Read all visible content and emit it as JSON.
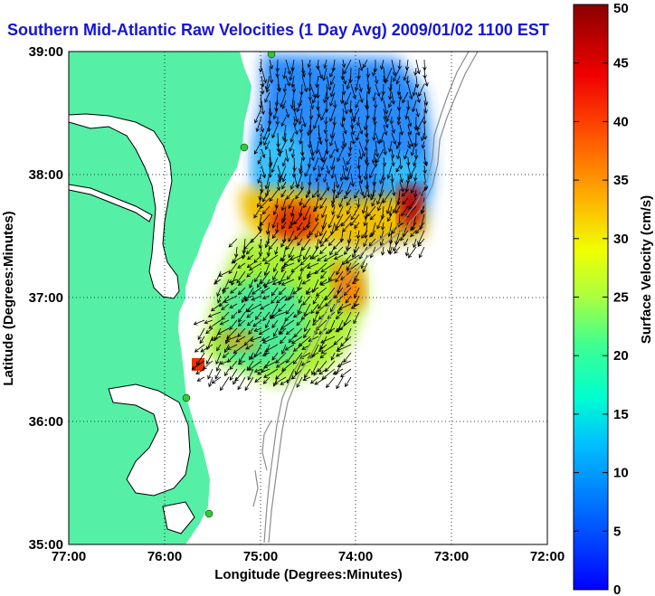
{
  "title": "Southern Mid-Atlantic Raw Velocities (1 Day Avg) 2009/01/02 1100 EST",
  "axes": {
    "xlabel": "Longitude (Degrees:Minutes)",
    "ylabel": "Latitude (Degrees:Minutes)",
    "xticks": [
      "77:00",
      "76:00",
      "75:00",
      "74:00",
      "73:00",
      "72:00"
    ],
    "yticks": [
      "39:00",
      "38:00",
      "37:00",
      "36:00",
      "35:00"
    ],
    "xlim": [
      -77,
      -72
    ],
    "ylim": [
      35,
      39
    ],
    "grid": true
  },
  "colorbar": {
    "label": "Surface Velocity (cm/s)",
    "ticks": [
      "0",
      "5",
      "10",
      "15",
      "20",
      "25",
      "30",
      "35",
      "40",
      "45",
      "50"
    ],
    "range": [
      0,
      50
    ]
  },
  "colors": {
    "land": "#55f0a6",
    "coast": "#000000",
    "grid": "#000000",
    "bathymetry": "#8c8c8c",
    "title": "#1414d8",
    "site_marker": "#33cc33"
  },
  "radar_sites": [
    {
      "lon": -75.1,
      "lat": 39.0
    },
    {
      "lon": -75.1,
      "lat": 38.21
    },
    {
      "lon": -75.75,
      "lat": 36.2
    },
    {
      "lon": -75.55,
      "lat": 35.25
    }
  ]
}
